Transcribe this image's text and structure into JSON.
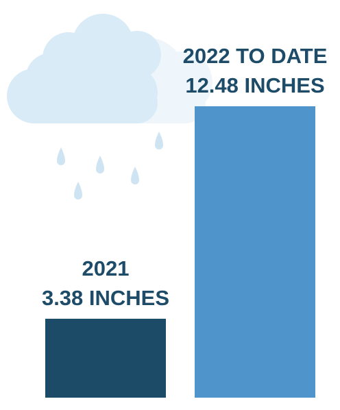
{
  "chart_data": {
    "type": "bar",
    "categories": [
      "2021",
      "2022 TO DATE"
    ],
    "values": [
      3.38,
      12.48
    ],
    "value_labels": [
      "3.38 INCHES",
      "12.48 INCHES"
    ],
    "colors": [
      "#1c4b67",
      "#4f95cb"
    ]
  }
}
